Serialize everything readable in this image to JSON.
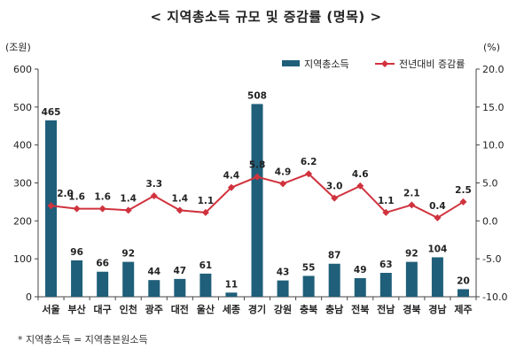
{
  "title": "< 지역총소득 규모 및 증감률 (명목) >",
  "footnote": "* 지역총소득 = 지역총본원소득",
  "chart_data": {
    "type": "bar+line",
    "categories": [
      "서울",
      "부산",
      "대구",
      "인천",
      "광주",
      "대전",
      "울산",
      "세종",
      "경기",
      "강원",
      "충북",
      "충남",
      "전북",
      "전남",
      "경북",
      "경남",
      "제주"
    ],
    "series": [
      {
        "name": "지역총소득",
        "type": "bar",
        "axis": "left",
        "color": "#1f5f7a",
        "values": [
          465,
          96,
          66,
          92,
          44,
          47,
          61,
          11,
          508,
          43,
          55,
          87,
          49,
          63,
          92,
          104,
          20
        ]
      },
      {
        "name": "전년대비 증감률",
        "type": "line",
        "axis": "right",
        "color": "#d0333e",
        "values": [
          2.0,
          1.6,
          1.6,
          1.4,
          3.3,
          1.4,
          1.1,
          4.4,
          5.8,
          4.9,
          6.2,
          3.0,
          4.6,
          1.1,
          2.1,
          0.4,
          2.5
        ]
      }
    ],
    "rate_labels": [
      "2.0",
      "1.6",
      "1.6",
      "1.4",
      "3.3",
      "1.4",
      "1.1",
      "4.4",
      "5.8",
      "4.9",
      "6.2",
      "3.0",
      "4.6",
      "1.1",
      "2.1",
      "0.4",
      "2.5"
    ],
    "y_left": {
      "label": "(조원)",
      "min": 0,
      "max": 600,
      "ticks": [
        "0",
        "100",
        "200",
        "300",
        "400",
        "500",
        "600"
      ]
    },
    "y_right": {
      "label": "(%)",
      "min": -10,
      "max": 20,
      "ticks": [
        "-10.0",
        "-5.0",
        "0.0",
        "5.0",
        "10.0",
        "15.0",
        "20.0"
      ]
    },
    "grid": false,
    "legend_position": "top-right"
  }
}
